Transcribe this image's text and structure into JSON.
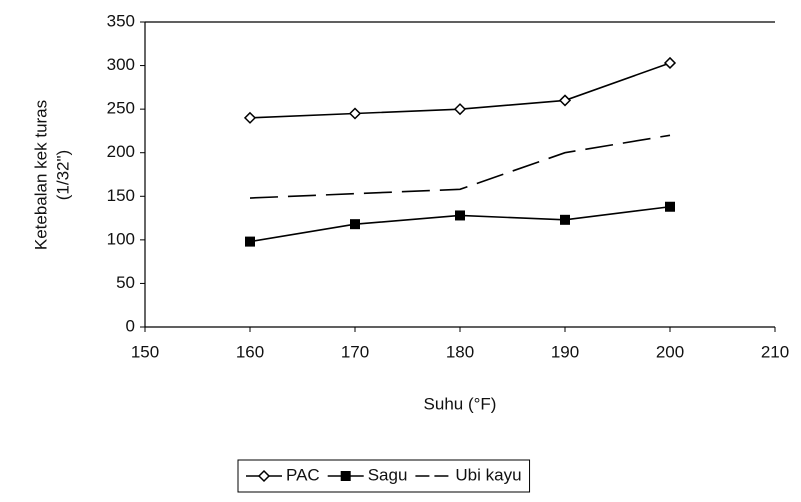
{
  "chart_data": {
    "type": "line",
    "ylabel": [
      "Ketebalan kek turas",
      "(1/32\")"
    ],
    "xlabel": "Suhu (°F)",
    "x": [
      160,
      170,
      180,
      190,
      200
    ],
    "series": [
      {
        "name": "PAC",
        "color": "#000000",
        "marker": "diamond",
        "dashed": false,
        "values": [
          240,
          245,
          250,
          260,
          303
        ]
      },
      {
        "name": "Sagu",
        "color": "#000000",
        "marker": "square",
        "dashed": false,
        "values": [
          98,
          118,
          128,
          123,
          138
        ]
      },
      {
        "name": "Ubi kayu",
        "color": "#000000",
        "marker": "none",
        "dashed": true,
        "values": [
          148,
          153,
          158,
          200,
          220
        ]
      }
    ],
    "xlim": [
      150,
      210
    ],
    "xticks": [
      150,
      160,
      170,
      180,
      190,
      200,
      210
    ],
    "ylim": [
      0,
      350
    ],
    "yticks": [
      0,
      50,
      100,
      150,
      200,
      250,
      300,
      350
    ],
    "grid": false,
    "legend": "bottom"
  }
}
